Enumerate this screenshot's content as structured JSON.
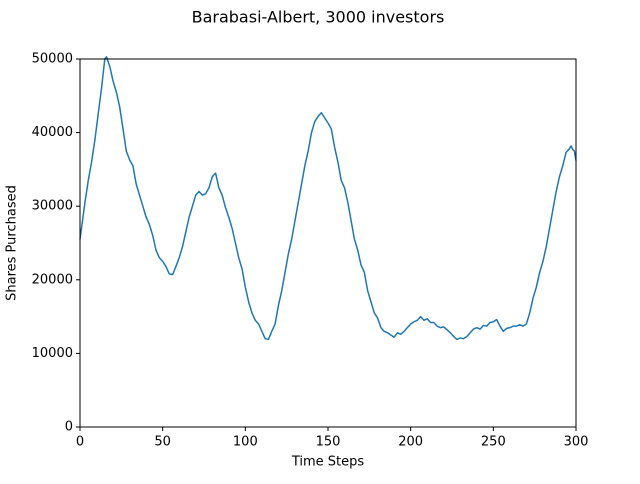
{
  "chart_data": {
    "type": "line",
    "title": "Barabasi-Albert, 3000 investors",
    "xlabel": "Time Steps",
    "ylabel": "Shares Purchased",
    "xlim": [
      0,
      300
    ],
    "ylim": [
      0,
      50000
    ],
    "xticks": [
      0,
      50,
      100,
      150,
      200,
      250,
      300
    ],
    "yticks": [
      0,
      10000,
      20000,
      30000,
      40000,
      50000
    ],
    "x": [
      0,
      3,
      5,
      7,
      9,
      11,
      13,
      15,
      16,
      18,
      20,
      22,
      24,
      26,
      28,
      30,
      32,
      34,
      36,
      38,
      40,
      42,
      44,
      46,
      48,
      50,
      52,
      54,
      56,
      58,
      60,
      62,
      64,
      66,
      68,
      70,
      72,
      74,
      76,
      78,
      80,
      82,
      84,
      86,
      88,
      90,
      92,
      94,
      96,
      98,
      100,
      102,
      104,
      106,
      108,
      110,
      112,
      114,
      116,
      118,
      120,
      122,
      124,
      126,
      128,
      130,
      132,
      134,
      136,
      138,
      140,
      142,
      144,
      146,
      148,
      150,
      152,
      154,
      156,
      158,
      160,
      162,
      164,
      166,
      168,
      170,
      172,
      174,
      176,
      178,
      180,
      182,
      184,
      186,
      188,
      190,
      192,
      194,
      196,
      198,
      200,
      202,
      204,
      206,
      208,
      210,
      212,
      214,
      216,
      218,
      220,
      222,
      224,
      226,
      228,
      230,
      232,
      234,
      236,
      238,
      240,
      242,
      244,
      246,
      248,
      250,
      252,
      254,
      256,
      258,
      260,
      262,
      264,
      266,
      268,
      270,
      272,
      274,
      276,
      278,
      280,
      282,
      284,
      286,
      288,
      290,
      292,
      294,
      296,
      297,
      298,
      299,
      300
    ],
    "series": [
      {
        "color": "#1f77b4",
        "values": [
          25500,
          30500,
          33500,
          36000,
          39000,
          42500,
          46000,
          50000,
          50300,
          49000,
          47000,
          45500,
          43500,
          40500,
          37500,
          36300,
          35500,
          33000,
          31500,
          30000,
          28500,
          27500,
          26000,
          24000,
          23000,
          22500,
          21800,
          20800,
          20700,
          21800,
          23000,
          24500,
          26500,
          28500,
          30000,
          31500,
          32000,
          31500,
          31700,
          32500,
          34000,
          34500,
          32500,
          31500,
          29800,
          28500,
          27000,
          25000,
          23000,
          21500,
          19000,
          17000,
          15500,
          14500,
          14000,
          13000,
          12000,
          11900,
          13000,
          14000,
          16500,
          18500,
          21000,
          23500,
          25500,
          28000,
          30500,
          33000,
          35500,
          37500,
          40000,
          41500,
          42200,
          42700,
          42000,
          41300,
          40500,
          38000,
          36000,
          33500,
          32500,
          30500,
          28000,
          25500,
          24000,
          22000,
          21000,
          18500,
          17000,
          15500,
          14800,
          13500,
          13000,
          12800,
          12500,
          12200,
          12800,
          12600,
          13000,
          13500,
          14000,
          14300,
          14500,
          15000,
          14500,
          14700,
          14200,
          14200,
          13700,
          13500,
          13600,
          13200,
          12800,
          12300,
          11900,
          12100,
          12000,
          12300,
          12800,
          13300,
          13500,
          13300,
          13800,
          13700,
          14200,
          14300,
          14600,
          13700,
          13000,
          13400,
          13500,
          13700,
          13700,
          13900,
          13700,
          14000,
          15500,
          17500,
          19000,
          21000,
          22500,
          24500,
          27000,
          29500,
          32000,
          34000,
          35500,
          37300,
          37800,
          38200,
          37700,
          37500,
          36200
        ]
      }
    ]
  }
}
